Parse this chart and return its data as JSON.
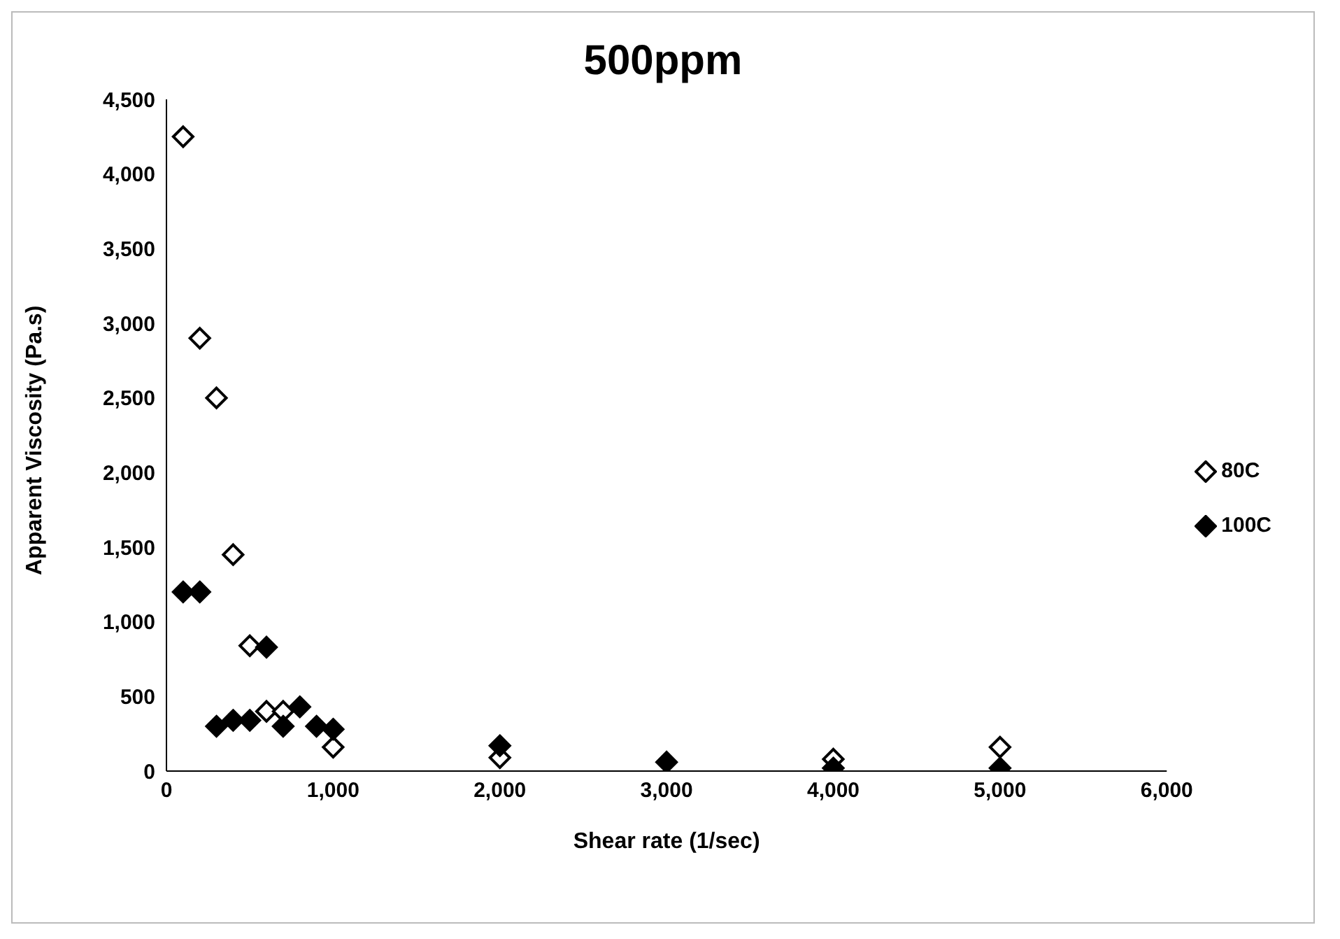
{
  "chart_data": {
    "type": "scatter",
    "title": "500ppm",
    "xlabel": "Shear rate (1/sec)",
    "ylabel": "Apparent Viscosity (Pa.s)",
    "xlim": [
      0,
      6000
    ],
    "xticks": [
      {
        "value": 0,
        "label": "0"
      },
      {
        "value": 1000,
        "label": "1,000"
      },
      {
        "value": 2000,
        "label": "2,000"
      },
      {
        "value": 3000,
        "label": "3,000"
      },
      {
        "value": 4000,
        "label": "4,000"
      },
      {
        "value": 5000,
        "label": "5,000"
      },
      {
        "value": 6000,
        "label": "6,000"
      }
    ],
    "ylim": [
      0,
      4500
    ],
    "yticks": [
      {
        "value": 0,
        "label": "0"
      },
      {
        "value": 500,
        "label": "500"
      },
      {
        "value": 1000,
        "label": "1,000"
      },
      {
        "value": 1500,
        "label": "1,500"
      },
      {
        "value": 2000,
        "label": "2,000"
      },
      {
        "value": 2500,
        "label": "2,500"
      },
      {
        "value": 3000,
        "label": "3,000"
      },
      {
        "value": 3500,
        "label": "3,500"
      },
      {
        "value": 4000,
        "label": "4,000"
      },
      {
        "value": 4500,
        "label": "4,500"
      }
    ],
    "grid": false,
    "legend": "right",
    "marker": "diamond",
    "series": [
      {
        "name": "80C",
        "color": "#ffffff",
        "x": [
          100,
          200,
          300,
          400,
          500,
          600,
          700,
          1000,
          2000,
          3000,
          4000,
          5000
        ],
        "values": [
          4250,
          2900,
          2500,
          1450,
          840,
          400,
          400,
          160,
          90,
          null,
          80,
          160
        ]
      },
      {
        "name": "100C",
        "color": "#000000",
        "x": [
          100,
          200,
          300,
          400,
          500,
          600,
          700,
          800,
          900,
          1000,
          2000,
          3000,
          4000,
          5000
        ],
        "values": [
          1200,
          1200,
          300,
          340,
          340,
          830,
          300,
          430,
          300,
          280,
          170,
          60,
          20,
          20
        ]
      }
    ]
  }
}
